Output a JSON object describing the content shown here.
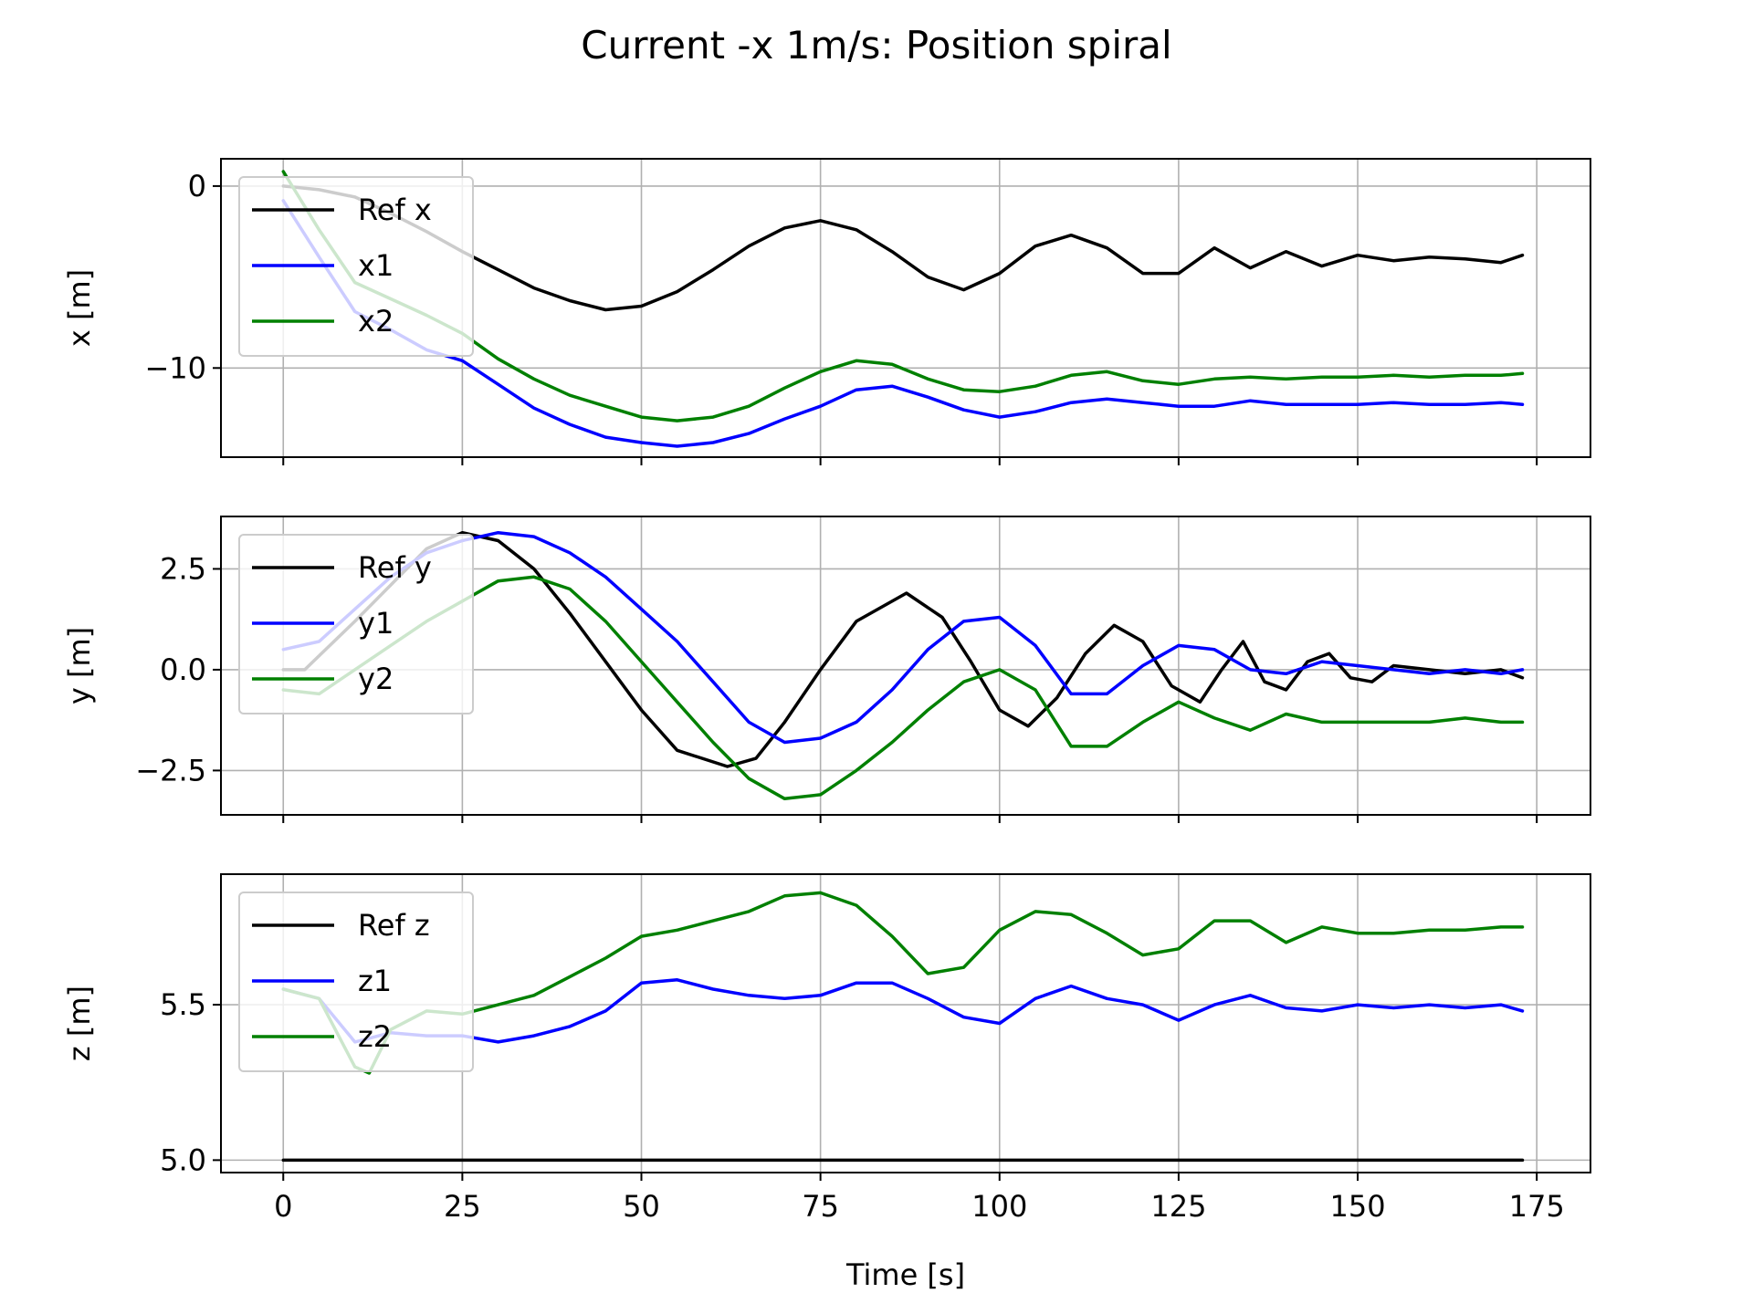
{
  "figure": {
    "title": "Current -x 1m/s: Position spiral"
  },
  "chart_data": [
    {
      "type": "line",
      "ylabel": "x [m]",
      "xlabel": "",
      "xlim": [
        -8.7,
        182.5
      ],
      "ylim": [
        -14.9,
        1.5
      ],
      "xticks": [
        0,
        25,
        50,
        75,
        100,
        125,
        150,
        175
      ],
      "xtick_labels": [
        "",
        "",
        "",
        "",
        "",
        "",
        "",
        ""
      ],
      "yticks": [
        0,
        -10
      ],
      "ytick_labels": [
        "0",
        "−10"
      ],
      "grid": true,
      "legend": "top-left",
      "series": [
        {
          "name": "Ref x",
          "color": "#000000",
          "x": [
            0,
            5,
            10,
            15,
            20,
            25,
            30,
            35,
            40,
            45,
            50,
            55,
            60,
            65,
            70,
            75,
            80,
            85,
            90,
            95,
            100,
            105,
            110,
            115,
            120,
            125,
            130,
            135,
            140,
            145,
            150,
            155,
            160,
            165,
            170,
            173
          ],
          "y": [
            0,
            -0.2,
            -0.6,
            -1.5,
            -2.5,
            -3.6,
            -4.6,
            -5.6,
            -6.3,
            -6.8,
            -6.6,
            -5.8,
            -4.6,
            -3.3,
            -2.3,
            -1.9,
            -2.4,
            -3.6,
            -5.0,
            -5.7,
            -4.8,
            -3.3,
            -2.7,
            -3.4,
            -4.8,
            -4.8,
            -3.4,
            -4.5,
            -3.6,
            -4.4,
            -3.8,
            -4.1,
            -3.9,
            -4.0,
            -4.2,
            -3.8
          ]
        },
        {
          "name": "x1",
          "color": "#0000ff",
          "x": [
            0,
            5,
            10,
            15,
            20,
            25,
            30,
            35,
            40,
            45,
            50,
            55,
            60,
            65,
            70,
            75,
            80,
            85,
            90,
            95,
            100,
            105,
            110,
            115,
            120,
            125,
            130,
            135,
            140,
            145,
            150,
            155,
            160,
            165,
            170,
            173
          ],
          "y": [
            -0.8,
            -3.9,
            -6.9,
            -7.9,
            -9.0,
            -9.6,
            -10.9,
            -12.2,
            -13.1,
            -13.8,
            -14.1,
            -14.3,
            -14.1,
            -13.6,
            -12.8,
            -12.1,
            -11.2,
            -11.0,
            -11.6,
            -12.3,
            -12.7,
            -12.4,
            -11.9,
            -11.7,
            -11.9,
            -12.1,
            -12.1,
            -11.8,
            -12.0,
            -12.0,
            -12.0,
            -11.9,
            -12.0,
            -12.0,
            -11.9,
            -12.0
          ]
        },
        {
          "name": "x2",
          "color": "#008000",
          "x": [
            0,
            5,
            10,
            15,
            20,
            25,
            30,
            35,
            40,
            45,
            50,
            55,
            60,
            65,
            70,
            75,
            80,
            85,
            90,
            95,
            100,
            105,
            110,
            115,
            120,
            125,
            130,
            135,
            140,
            145,
            150,
            155,
            160,
            165,
            170,
            173
          ],
          "y": [
            0.8,
            -2.4,
            -5.3,
            -6.2,
            -7.1,
            -8.1,
            -9.5,
            -10.6,
            -11.5,
            -12.1,
            -12.7,
            -12.9,
            -12.7,
            -12.1,
            -11.1,
            -10.2,
            -9.6,
            -9.8,
            -10.6,
            -11.2,
            -11.3,
            -11.0,
            -10.4,
            -10.2,
            -10.7,
            -10.9,
            -10.6,
            -10.5,
            -10.6,
            -10.5,
            -10.5,
            -10.4,
            -10.5,
            -10.4,
            -10.4,
            -10.3
          ]
        }
      ]
    },
    {
      "type": "line",
      "ylabel": "y [m]",
      "xlabel": "",
      "xlim": [
        -8.7,
        182.5
      ],
      "ylim": [
        -3.6,
        3.8
      ],
      "xticks": [
        0,
        25,
        50,
        75,
        100,
        125,
        150,
        175
      ],
      "xtick_labels": [
        "",
        "",
        "",
        "",
        "",
        "",
        "",
        ""
      ],
      "yticks": [
        2.5,
        0.0,
        -2.5
      ],
      "ytick_labels": [
        "2.5",
        "0.0",
        "−2.5"
      ],
      "grid": true,
      "legend": "top-left",
      "series": [
        {
          "name": "Ref y",
          "color": "#000000",
          "x": [
            0,
            3,
            10,
            20,
            25,
            30,
            35,
            40,
            45,
            50,
            55,
            62,
            66,
            70,
            75,
            80,
            87,
            92,
            96,
            100,
            104,
            108,
            112,
            116,
            120,
            124,
            128,
            131,
            134,
            137,
            140,
            143,
            146,
            149,
            152,
            155,
            160,
            165,
            170,
            173
          ],
          "y": [
            0,
            0,
            1.2,
            3.0,
            3.4,
            3.2,
            2.5,
            1.4,
            0.2,
            -1.0,
            -2.0,
            -2.4,
            -2.2,
            -1.3,
            0.0,
            1.2,
            1.9,
            1.3,
            0.2,
            -1.0,
            -1.4,
            -0.7,
            0.4,
            1.1,
            0.7,
            -0.4,
            -0.8,
            0.0,
            0.7,
            -0.3,
            -0.5,
            0.2,
            0.4,
            -0.2,
            -0.3,
            0.1,
            0.0,
            -0.1,
            0.0,
            -0.2
          ]
        },
        {
          "name": "y1",
          "color": "#0000ff",
          "x": [
            0,
            5,
            10,
            15,
            20,
            25,
            30,
            35,
            40,
            45,
            50,
            55,
            60,
            65,
            70,
            75,
            80,
            85,
            90,
            95,
            100,
            105,
            110,
            115,
            120,
            125,
            130,
            135,
            140,
            145,
            150,
            155,
            160,
            165,
            170,
            173
          ],
          "y": [
            0.5,
            0.7,
            1.5,
            2.3,
            2.9,
            3.2,
            3.4,
            3.3,
            2.9,
            2.3,
            1.5,
            0.7,
            -0.3,
            -1.3,
            -1.8,
            -1.7,
            -1.3,
            -0.5,
            0.5,
            1.2,
            1.3,
            0.6,
            -0.6,
            -0.6,
            0.1,
            0.6,
            0.5,
            0.0,
            -0.1,
            0.2,
            0.1,
            0.0,
            -0.1,
            0.0,
            -0.1,
            0.0
          ]
        },
        {
          "name": "y2",
          "color": "#008000",
          "x": [
            0,
            5,
            10,
            15,
            20,
            25,
            30,
            35,
            40,
            45,
            50,
            55,
            60,
            65,
            70,
            75,
            80,
            85,
            90,
            95,
            100,
            105,
            110,
            115,
            120,
            125,
            130,
            135,
            140,
            145,
            150,
            155,
            160,
            165,
            170,
            173
          ],
          "y": [
            -0.5,
            -0.6,
            0.0,
            0.6,
            1.2,
            1.7,
            2.2,
            2.3,
            2.0,
            1.2,
            0.2,
            -0.8,
            -1.8,
            -2.7,
            -3.2,
            -3.1,
            -2.5,
            -1.8,
            -1.0,
            -0.3,
            0.0,
            -0.5,
            -1.9,
            -1.9,
            -1.3,
            -0.8,
            -1.2,
            -1.5,
            -1.1,
            -1.3,
            -1.3,
            -1.3,
            -1.3,
            -1.2,
            -1.3,
            -1.3
          ]
        }
      ]
    },
    {
      "type": "line",
      "ylabel": "z [m]",
      "xlabel": "Time [s]",
      "xlim": [
        -8.7,
        182.5
      ],
      "ylim": [
        4.96,
        5.92
      ],
      "xticks": [
        0,
        25,
        50,
        75,
        100,
        125,
        150,
        175
      ],
      "xtick_labels": [
        "0",
        "25",
        "50",
        "75",
        "100",
        "125",
        "150",
        "175"
      ],
      "yticks": [
        5.5,
        5.0
      ],
      "ytick_labels": [
        "5.5",
        "5.0"
      ],
      "grid": true,
      "legend": "top-left",
      "series": [
        {
          "name": "Ref z",
          "color": "#000000",
          "x": [
            0,
            173
          ],
          "y": [
            5.0,
            5.0
          ]
        },
        {
          "name": "z1",
          "color": "#0000ff",
          "x": [
            0,
            5,
            10,
            15,
            20,
            25,
            30,
            35,
            40,
            45,
            50,
            55,
            60,
            65,
            70,
            75,
            80,
            85,
            90,
            95,
            100,
            105,
            110,
            115,
            120,
            125,
            130,
            135,
            140,
            145,
            150,
            155,
            160,
            165,
            170,
            173
          ],
          "y": [
            5.55,
            5.52,
            5.38,
            5.41,
            5.4,
            5.4,
            5.38,
            5.4,
            5.43,
            5.48,
            5.57,
            5.58,
            5.55,
            5.53,
            5.52,
            5.53,
            5.57,
            5.57,
            5.52,
            5.46,
            5.44,
            5.52,
            5.56,
            5.52,
            5.5,
            5.45,
            5.5,
            5.53,
            5.49,
            5.48,
            5.5,
            5.49,
            5.5,
            5.49,
            5.5,
            5.48
          ]
        },
        {
          "name": "z2",
          "color": "#008000",
          "x": [
            0,
            5,
            10,
            12,
            15,
            20,
            25,
            30,
            35,
            40,
            45,
            50,
            55,
            60,
            65,
            70,
            75,
            80,
            85,
            90,
            95,
            100,
            105,
            110,
            115,
            120,
            125,
            130,
            135,
            140,
            145,
            150,
            155,
            160,
            165,
            170,
            173
          ],
          "y": [
            5.55,
            5.52,
            5.3,
            5.28,
            5.42,
            5.48,
            5.47,
            5.5,
            5.53,
            5.59,
            5.65,
            5.72,
            5.74,
            5.77,
            5.8,
            5.85,
            5.86,
            5.82,
            5.72,
            5.6,
            5.62,
            5.74,
            5.8,
            5.79,
            5.73,
            5.66,
            5.68,
            5.77,
            5.77,
            5.7,
            5.75,
            5.73,
            5.73,
            5.74,
            5.74,
            5.75,
            5.75
          ]
        }
      ]
    }
  ]
}
